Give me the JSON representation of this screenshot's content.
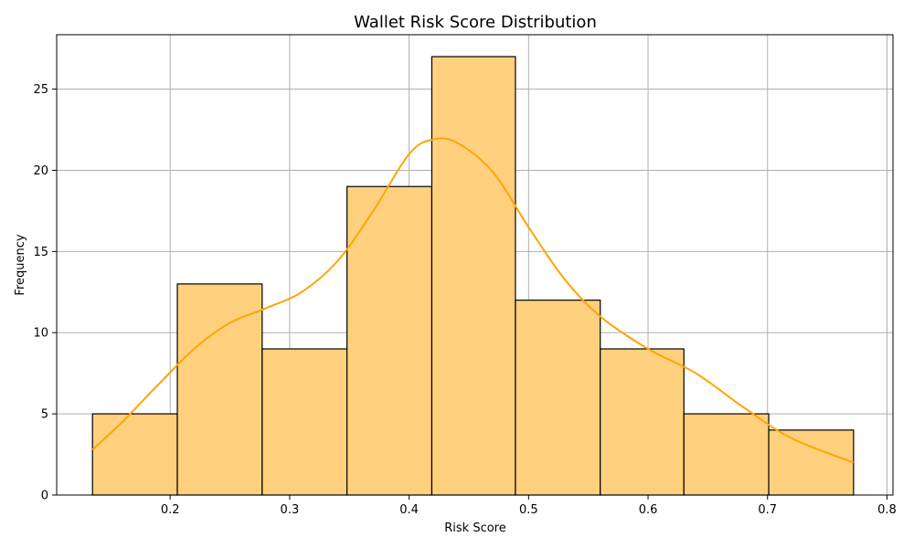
{
  "chart_data": {
    "type": "bar",
    "subtype": "histogram-with-kde",
    "title": "Wallet Risk Score Distribution",
    "xlabel": "Risk Score",
    "ylabel": "Frequency",
    "xlim": [
      0.105,
      0.805
    ],
    "ylim": [
      0,
      28.35
    ],
    "xticks": [
      0.2,
      0.3,
      0.4,
      0.5,
      0.6,
      0.7,
      0.8
    ],
    "xtick_labels": [
      "0.2",
      "0.3",
      "0.4",
      "0.5",
      "0.6",
      "0.7",
      "0.8"
    ],
    "yticks": [
      0,
      5,
      10,
      15,
      20,
      25
    ],
    "ytick_labels": [
      "0",
      "5",
      "10",
      "15",
      "20",
      "25"
    ],
    "grid": true,
    "bins": [
      {
        "start": 0.135,
        "end": 0.206,
        "count": 5
      },
      {
        "start": 0.206,
        "end": 0.277,
        "count": 13
      },
      {
        "start": 0.277,
        "end": 0.348,
        "count": 9
      },
      {
        "start": 0.348,
        "end": 0.419,
        "count": 19
      },
      {
        "start": 0.419,
        "end": 0.489,
        "count": 27
      },
      {
        "start": 0.489,
        "end": 0.56,
        "count": 12
      },
      {
        "start": 0.56,
        "end": 0.63,
        "count": 9
      },
      {
        "start": 0.63,
        "end": 0.701,
        "count": 5
      },
      {
        "start": 0.701,
        "end": 0.772,
        "count": 4
      }
    ],
    "kde": {
      "x": [
        0.135,
        0.16,
        0.19,
        0.22,
        0.25,
        0.28,
        0.31,
        0.34,
        0.37,
        0.4,
        0.42,
        0.44,
        0.47,
        0.5,
        0.53,
        0.56,
        0.6,
        0.64,
        0.68,
        0.72,
        0.772
      ],
      "y": [
        2.8,
        4.5,
        6.8,
        9.0,
        10.6,
        11.5,
        12.5,
        14.4,
        17.5,
        21.0,
        21.9,
        21.7,
        19.9,
        16.5,
        13.3,
        11.0,
        9.0,
        7.5,
        5.4,
        3.5,
        2.0
      ]
    },
    "colors": {
      "bar_fill": "#ffd17f",
      "bar_edge": "#000000",
      "kde_line": "#ffa500"
    }
  }
}
